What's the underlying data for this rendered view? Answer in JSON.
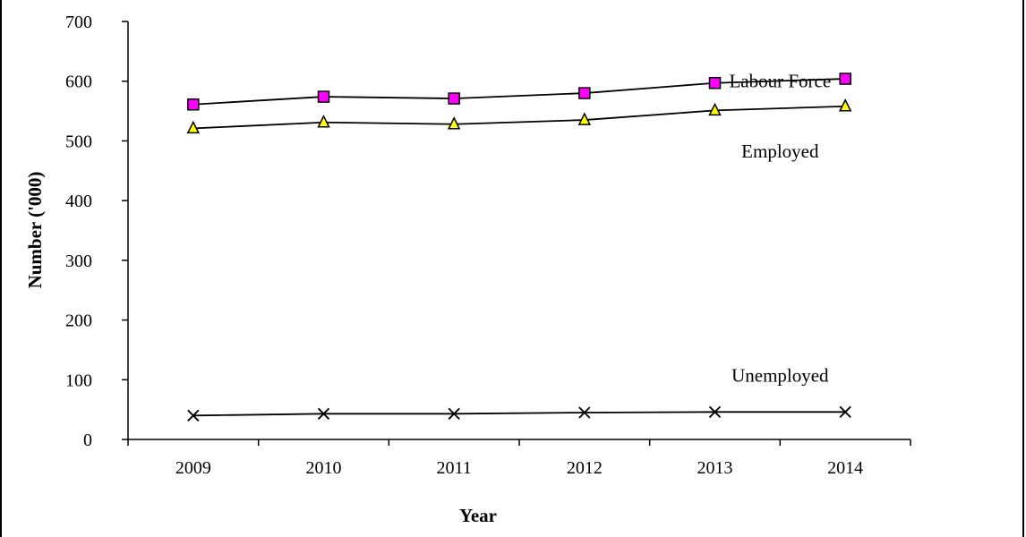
{
  "chart_data": {
    "type": "line",
    "title": "",
    "xlabel": "Year",
    "ylabel": "Number ('000)",
    "categories": [
      "2009",
      "2010",
      "2011",
      "2012",
      "2013",
      "2014"
    ],
    "ylim": [
      0,
      700
    ],
    "yticks": [
      0,
      100,
      200,
      300,
      400,
      500,
      600,
      700
    ],
    "grid": false,
    "legend": "inline labels",
    "series": [
      {
        "name": "Labour Force",
        "marker": "square",
        "color": "#ff00ff",
        "values": [
          561,
          574,
          571,
          580,
          597,
          604
        ]
      },
      {
        "name": "Employed",
        "marker": "triangle",
        "color": "#ffff00",
        "values": [
          521,
          531,
          528,
          535,
          551,
          558
        ]
      },
      {
        "name": "Unemployed",
        "marker": "x",
        "color": "#000000",
        "values": [
          40,
          43,
          43,
          45,
          46,
          46
        ]
      }
    ]
  }
}
